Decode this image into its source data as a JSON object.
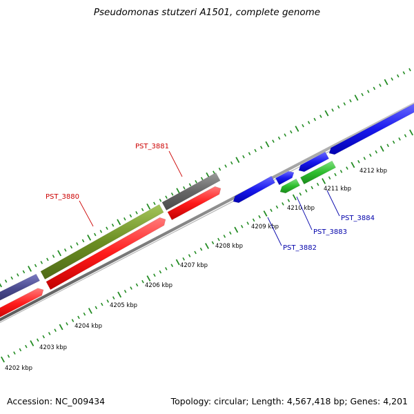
{
  "title": "Pseudomonas stutzeri A1501, complete genome",
  "footer": {
    "accession": "Accession: NC_009434",
    "summary": "Topology: circular; Length: 4,567,418 bp; Genes: 4,201"
  },
  "ticks": [
    {
      "label": "4202 kbp"
    },
    {
      "label": "4203 kbp"
    },
    {
      "label": "4204 kbp"
    },
    {
      "label": "4205 kbp"
    },
    {
      "label": "4206 kbp"
    },
    {
      "label": "4207 kbp"
    },
    {
      "label": "4208 kbp"
    },
    {
      "label": "4209 kbp"
    },
    {
      "label": "4210 kbp"
    },
    {
      "label": "4211 kbp"
    },
    {
      "label": "4212 kbp"
    }
  ],
  "genes": [
    {
      "id": "PST_3880",
      "color": "#cc0000"
    },
    {
      "id": "PST_3881",
      "color": "#cc0000"
    },
    {
      "id": "PST_3882",
      "color": "#0000aa"
    },
    {
      "id": "PST_3883",
      "color": "#0000aa"
    },
    {
      "id": "PST_3884",
      "color": "#0000aa"
    }
  ],
  "colors": {
    "tick": "#228b22",
    "backbone": "#8c8c8c",
    "red": "#ff1a1a",
    "olive": "#6b8e23",
    "gray": "#666666",
    "slate": "#4b4b8f",
    "blue": "#1a1aee",
    "green": "#2ebd2e"
  }
}
